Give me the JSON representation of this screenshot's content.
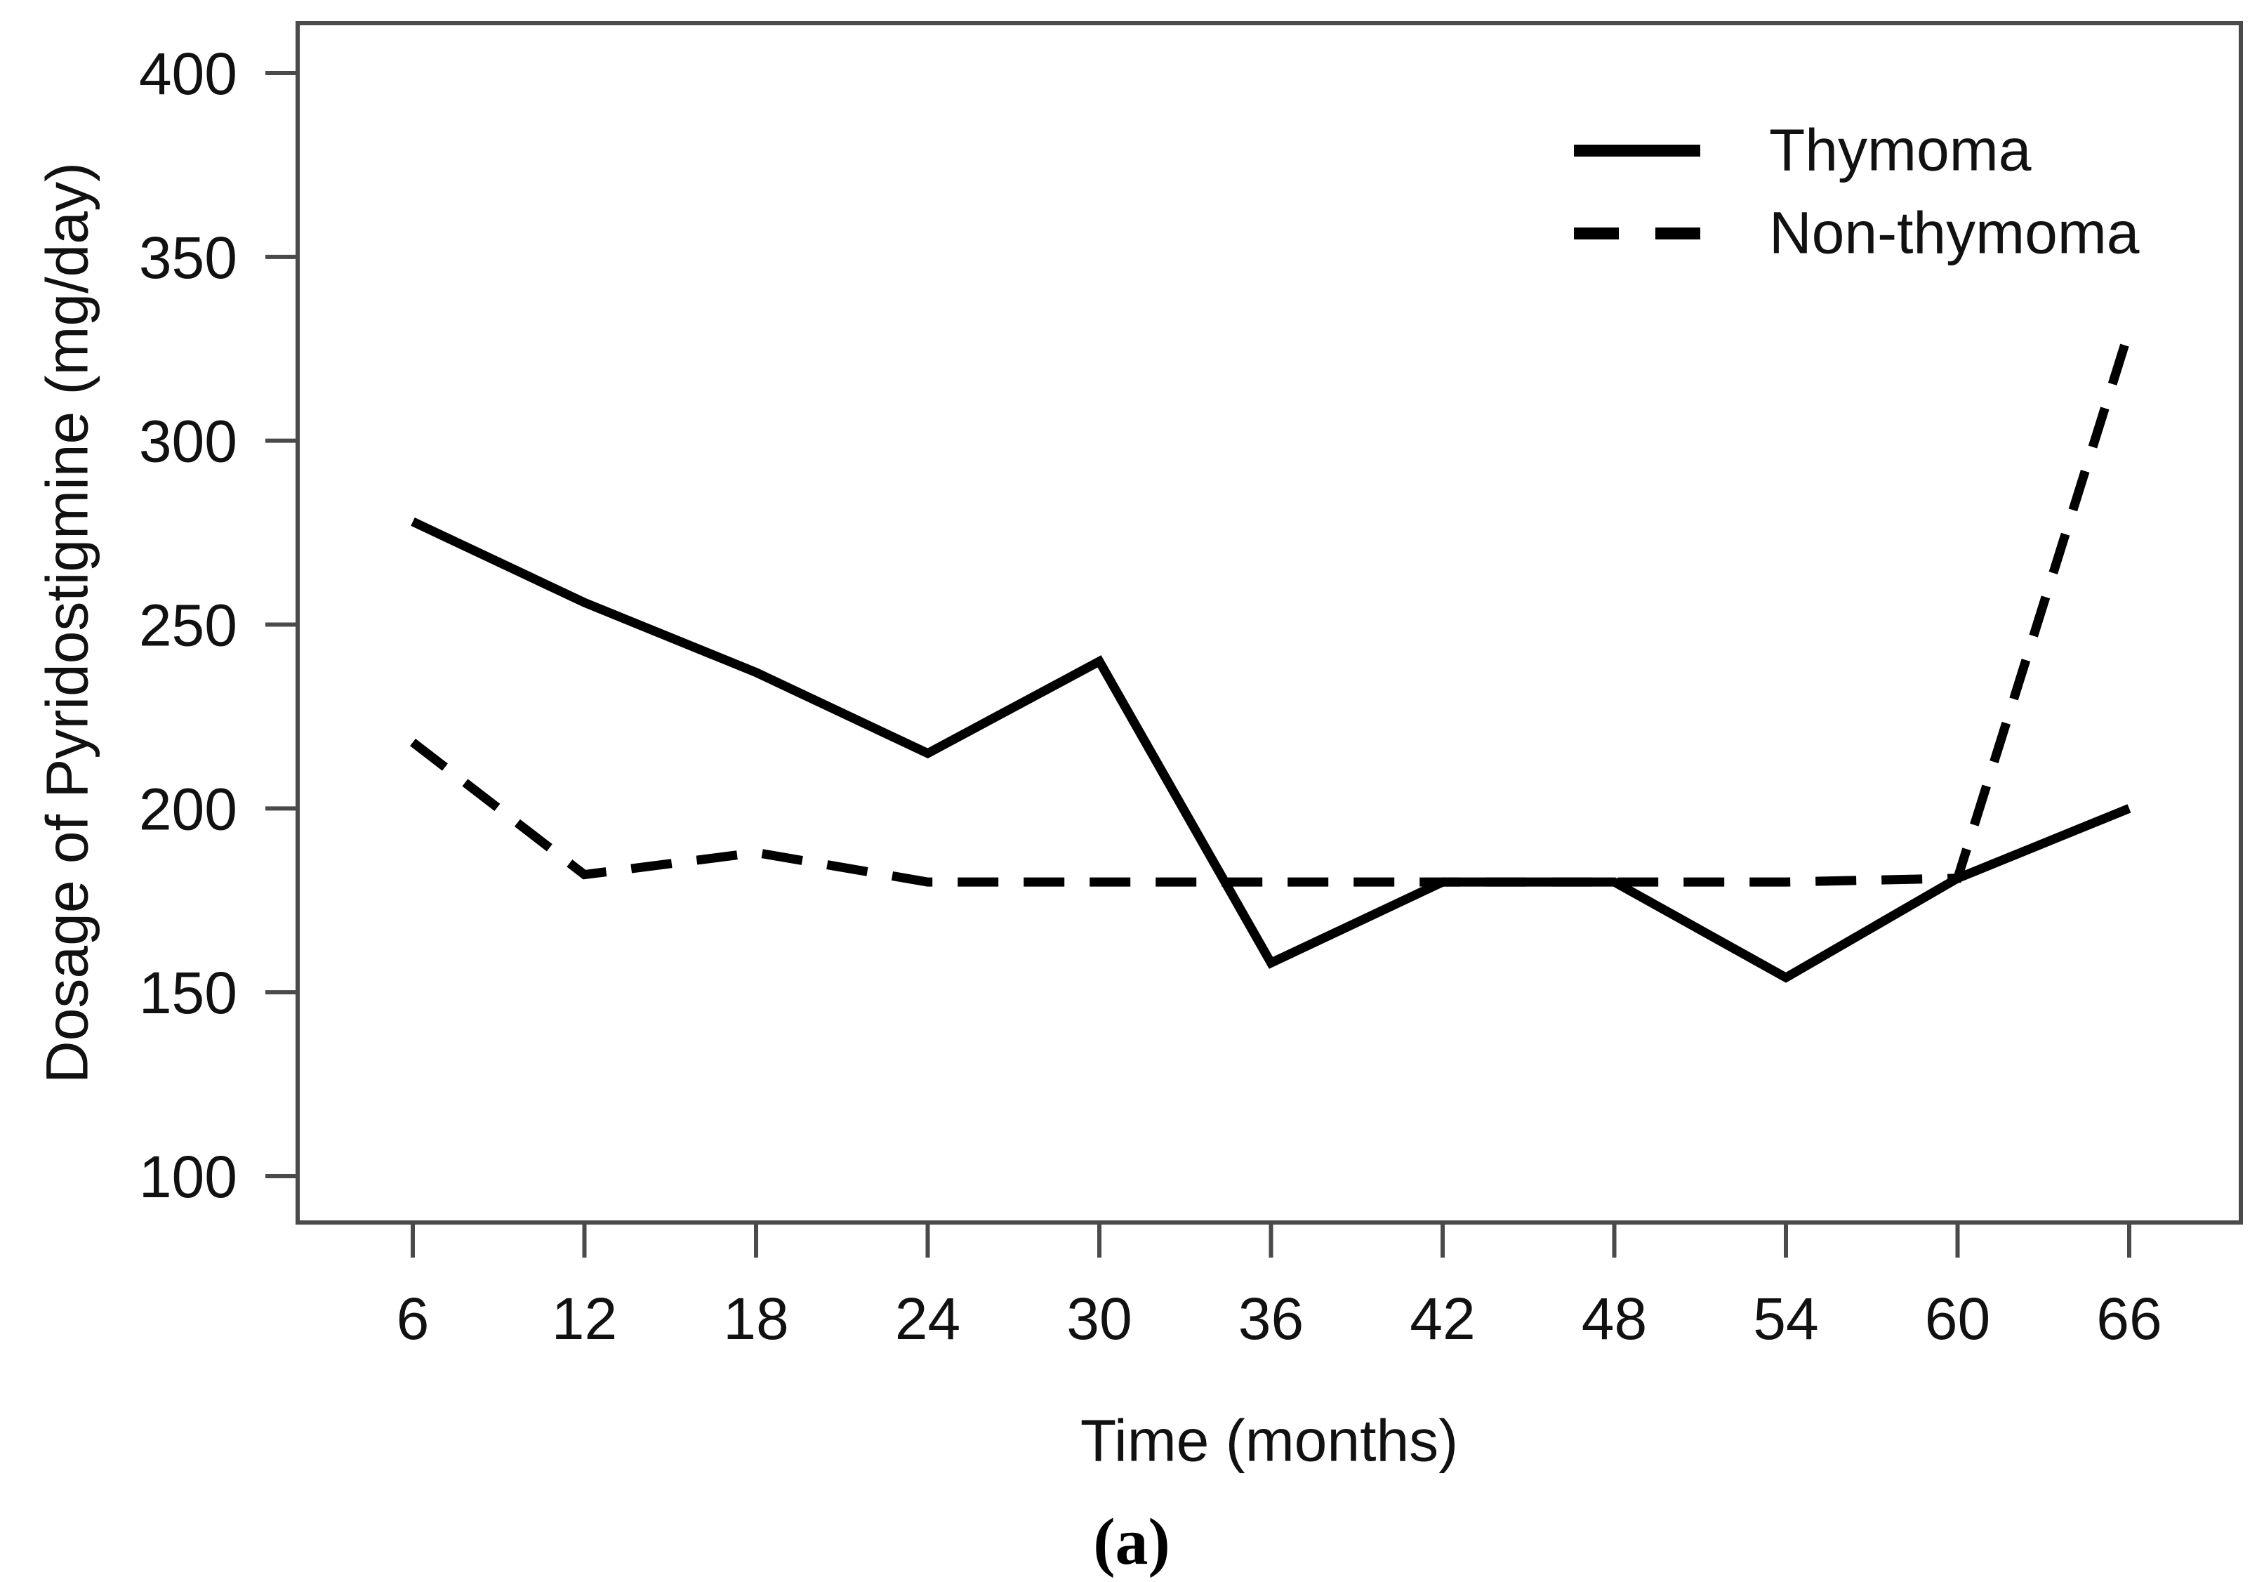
{
  "figure": {
    "caption": "(a)"
  },
  "chart": {
    "x_axis": {
      "title": "Time (months)",
      "ticks": [
        6,
        12,
        18,
        24,
        30,
        36,
        42,
        48,
        54,
        60,
        66
      ]
    },
    "y_axis": {
      "title": "Dosage of Pyridostigmine (mg/day)",
      "ticks": [
        100,
        150,
        200,
        250,
        300,
        350,
        400
      ]
    }
  },
  "chart_data": {
    "type": "line",
    "title": "",
    "xlabel": "Time (months)",
    "ylabel": "Dosage of Pyridostigmine (mg/day)",
    "x": [
      6,
      12,
      18,
      24,
      30,
      36,
      42,
      48,
      54,
      60,
      66
    ],
    "series": [
      {
        "name": "Thymoma",
        "line_style": "solid",
        "values": [
          278,
          256,
          237,
          215,
          240,
          158,
          180,
          180,
          154,
          181,
          200
        ]
      },
      {
        "name": "Non-thymoma",
        "line_style": "dashed",
        "values": [
          218,
          182,
          188,
          180,
          180,
          180,
          180,
          180,
          180,
          181,
          330
        ]
      }
    ],
    "xlim": [
      2,
      70
    ],
    "ylim": [
      87,
      420
    ],
    "x_tick_labels": [
      "6",
      "12",
      "18",
      "24",
      "30",
      "36",
      "42",
      "48",
      "54",
      "60",
      "66"
    ],
    "y_tick_labels": [
      "100",
      "150",
      "200",
      "250",
      "300",
      "350",
      "400"
    ],
    "grid": false,
    "legend_position": "top-right-inside",
    "legend_border": false
  },
  "colors": {
    "line": "#000000",
    "axis_frame": "#4a4a4a",
    "text": "#111111",
    "background": "#ffffff"
  }
}
